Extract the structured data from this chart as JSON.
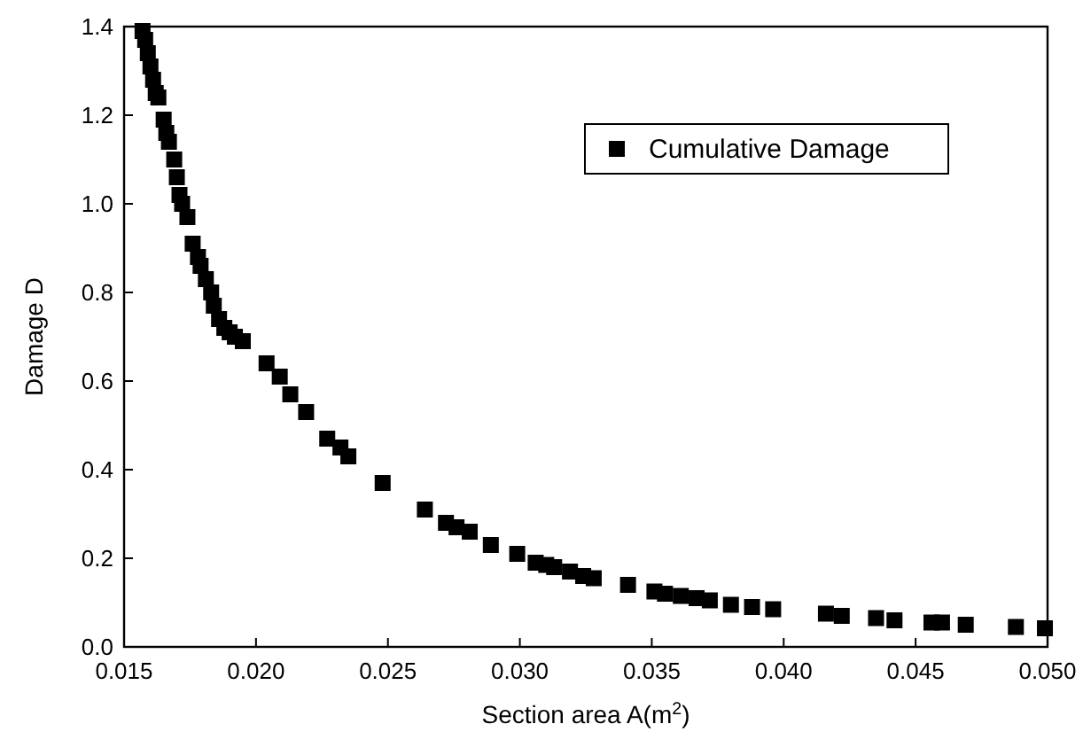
{
  "chart_data": {
    "type": "scatter",
    "xlabel": "Section area A(m$^{2}$)",
    "ylabel": "Damage D",
    "legend": "top right",
    "marker": "square",
    "xlim": [
      0.015,
      0.05
    ],
    "ylim": [
      0,
      1.4
    ],
    "xticks": [
      {
        "value": 0.015,
        "label": "0.015"
      },
      {
        "value": 0.02,
        "label": "0.020"
      },
      {
        "value": 0.025,
        "label": "0.025"
      },
      {
        "value": 0.03,
        "label": "0.030"
      },
      {
        "value": 0.035,
        "label": "0.035"
      },
      {
        "value": 0.04,
        "label": "0.040"
      },
      {
        "value": 0.045,
        "label": "0.045"
      },
      {
        "value": 0.05,
        "label": "0.050"
      }
    ],
    "yticks": [
      {
        "value": 0,
        "label": "0.0"
      },
      {
        "value": 0.2,
        "label": "0.2"
      },
      {
        "value": 0.4,
        "label": "0.4"
      },
      {
        "value": 0.6,
        "label": "0.6"
      },
      {
        "value": 0.8,
        "label": "0.8"
      },
      {
        "value": 1,
        "label": "1.0"
      },
      {
        "value": 1.2,
        "label": "1.2"
      },
      {
        "value": 1.4,
        "label": "1.4"
      }
    ],
    "series": [
      {
        "name": "Cumulative Damage",
        "color": "#000000",
        "x": [
          0.0157,
          0.0158,
          0.0159,
          0.016,
          0.0161,
          0.0162,
          0.0163,
          0.0165,
          0.0166,
          0.0167,
          0.0169,
          0.017,
          0.0171,
          0.0172,
          0.0174,
          0.0176,
          0.0178,
          0.0179,
          0.0181,
          0.0183,
          0.0184,
          0.0186,
          0.0188,
          0.019,
          0.0192,
          0.0195,
          0.0204,
          0.0209,
          0.0213,
          0.0219,
          0.0227,
          0.0232,
          0.0235,
          0.0248,
          0.0264,
          0.0272,
          0.0276,
          0.0281,
          0.0289,
          0.0299,
          0.0306,
          0.031,
          0.0313,
          0.0319,
          0.0324,
          0.0328,
          0.0341,
          0.0351,
          0.0355,
          0.0361,
          0.0367,
          0.0372,
          0.038,
          0.0388,
          0.0396,
          0.0416,
          0.0422,
          0.0435,
          0.0442,
          0.0456,
          0.046,
          0.0469,
          0.0488,
          0.0499
        ],
        "values": [
          1.39,
          1.37,
          1.34,
          1.31,
          1.28,
          1.25,
          1.24,
          1.19,
          1.16,
          1.14,
          1.1,
          1.06,
          1.02,
          1,
          0.97,
          0.91,
          0.88,
          0.86,
          0.83,
          0.8,
          0.77,
          0.74,
          0.72,
          0.71,
          0.7,
          0.69,
          0.64,
          0.61,
          0.57,
          0.53,
          0.47,
          0.45,
          0.43,
          0.37,
          0.31,
          0.28,
          0.27,
          0.26,
          0.23,
          0.21,
          0.19,
          0.185,
          0.18,
          0.17,
          0.16,
          0.155,
          0.14,
          0.125,
          0.12,
          0.115,
          0.11,
          0.105,
          0.095,
          0.09,
          0.085,
          0.075,
          0.07,
          0.065,
          0.06,
          0.055,
          0.055,
          0.05,
          0.045,
          0.042
        ]
      }
    ]
  }
}
